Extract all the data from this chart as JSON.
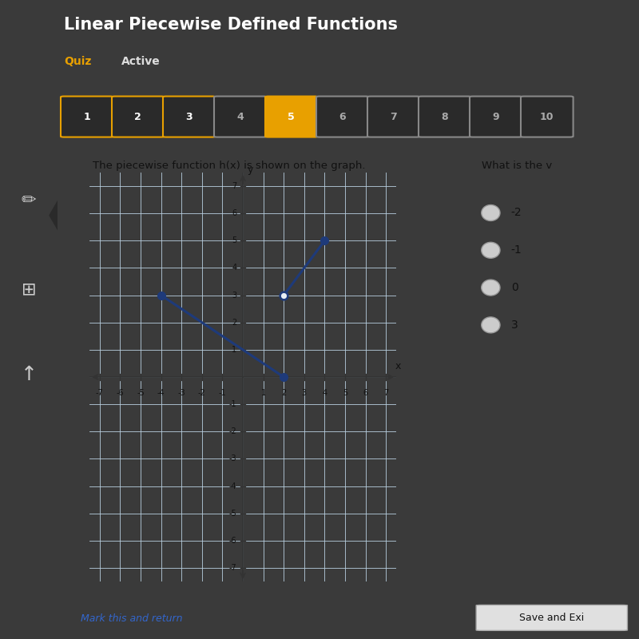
{
  "title": "Linear Piecewise Defined Functions",
  "subtitle": "The piecewise function h(x) is shown on the graph.",
  "question": "What is the v",
  "choices": [
    "-2",
    "-1",
    "0",
    "3"
  ],
  "segment1": {
    "x": [
      -4,
      2
    ],
    "y": [
      3,
      0
    ]
  },
  "segment2": {
    "x": [
      2,
      4
    ],
    "y": [
      3,
      5
    ]
  },
  "line_color": "#1e3a7a",
  "open_dot_facecolor": "#e8eef5",
  "open_dot_edgecolor": "#1e3a7a",
  "closed_dot_color": "#1e3a7a",
  "xlim": [
    -7.5,
    7.5
  ],
  "ylim": [
    -7.5,
    7.5
  ],
  "xticks": [
    -7,
    -6,
    -5,
    -4,
    -3,
    -2,
    -1,
    1,
    2,
    3,
    4,
    5,
    6,
    7
  ],
  "yticks": [
    -7,
    -6,
    -5,
    -4,
    -3,
    -2,
    -1,
    1,
    2,
    3,
    4,
    5,
    6,
    7
  ],
  "grid_color": "#b8cfe0",
  "graph_bg": "#dce8f2",
  "panel_bg": "#3a3a3a",
  "header_bg": "#2a2a2a",
  "content_bg": "#e8e8e8",
  "header_text_color": "#ffffff",
  "quiz_color": "#e8a000",
  "active_color": "#dddddd",
  "dot_size": 7,
  "line_width": 2.2,
  "box_labels": [
    "1",
    "2",
    "3",
    "4",
    "5",
    "6",
    "7",
    "8",
    "9",
    "10"
  ],
  "box_outlined": [
    "1",
    "2",
    "3"
  ],
  "box_filled_orange": [
    "5"
  ],
  "sidebar_bg": "#4a4a4a"
}
